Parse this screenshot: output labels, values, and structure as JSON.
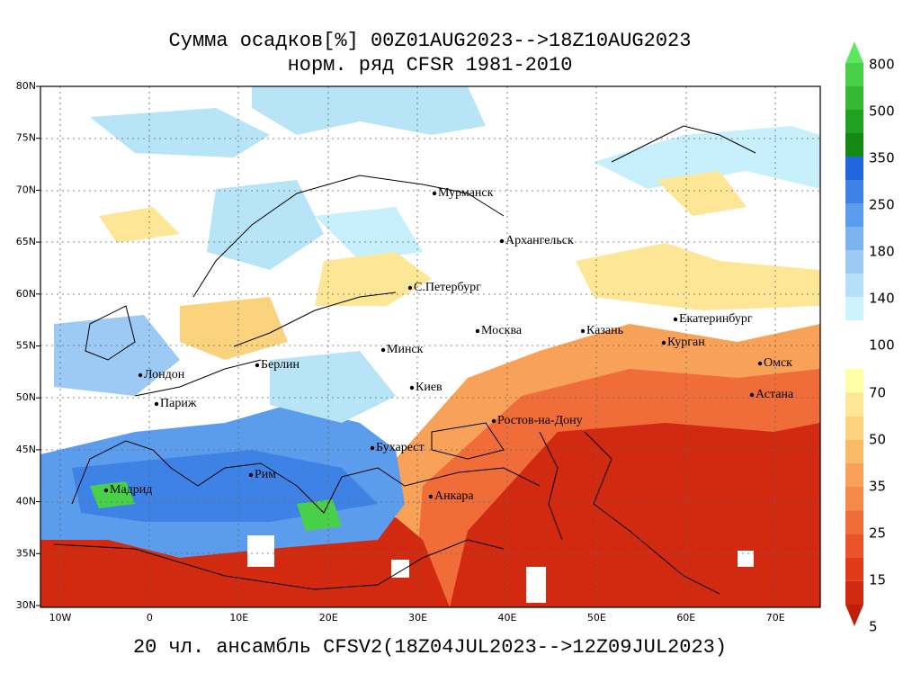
{
  "title": "Сумма осадков[%] 00Z01AUG2023-->18Z10AUG2023",
  "subtitle": "норм. ряд CFSR 1981-2010",
  "footer": "20 чл. ансамбль CFSV2(18Z04JUL2023-->12Z09JUL2023)",
  "map": {
    "lat_labels": [
      "80N",
      "75N",
      "70N",
      "65N",
      "60N",
      "55N",
      "50N",
      "45N",
      "40N",
      "35N",
      "30N"
    ],
    "lon_labels": [
      "10W",
      "0",
      "10E",
      "20E",
      "30E",
      "40E",
      "50E",
      "60E",
      "70E"
    ],
    "cities": [
      "Мурманск",
      "Архангельск",
      "С.Петербург",
      "Москва",
      "Казань",
      "Екатеринбург",
      "Курган",
      "Омск",
      "Астана",
      "Минск",
      "Берлин",
      "Лондон",
      "Париж",
      "Киев",
      "Ростов-на-Дону",
      "Бухарест",
      "Рим",
      "Мадрид",
      "Анкара"
    ]
  },
  "colorbar": {
    "upper_labels": [
      800,
      500,
      350,
      250,
      180,
      140
    ],
    "middle_label": 100,
    "lower_labels": [
      70,
      50,
      35,
      25,
      15,
      5
    ],
    "upper_colors": [
      "#5ce85c",
      "#48d048",
      "#34b834",
      "#22a022",
      "#148a14",
      "#2266dd",
      "#3e82e6",
      "#5c9cec",
      "#7cb4f0",
      "#9ccaf5",
      "#b6e0f9",
      "#cdf4fd"
    ],
    "lower_colors": [
      "#ffffa8",
      "#fde796",
      "#fbd27e",
      "#f9bb68",
      "#f7a258",
      "#f48a48",
      "#f06c38",
      "#ea5228",
      "#e03a18",
      "#d22a10",
      "#c01e08"
    ]
  }
}
